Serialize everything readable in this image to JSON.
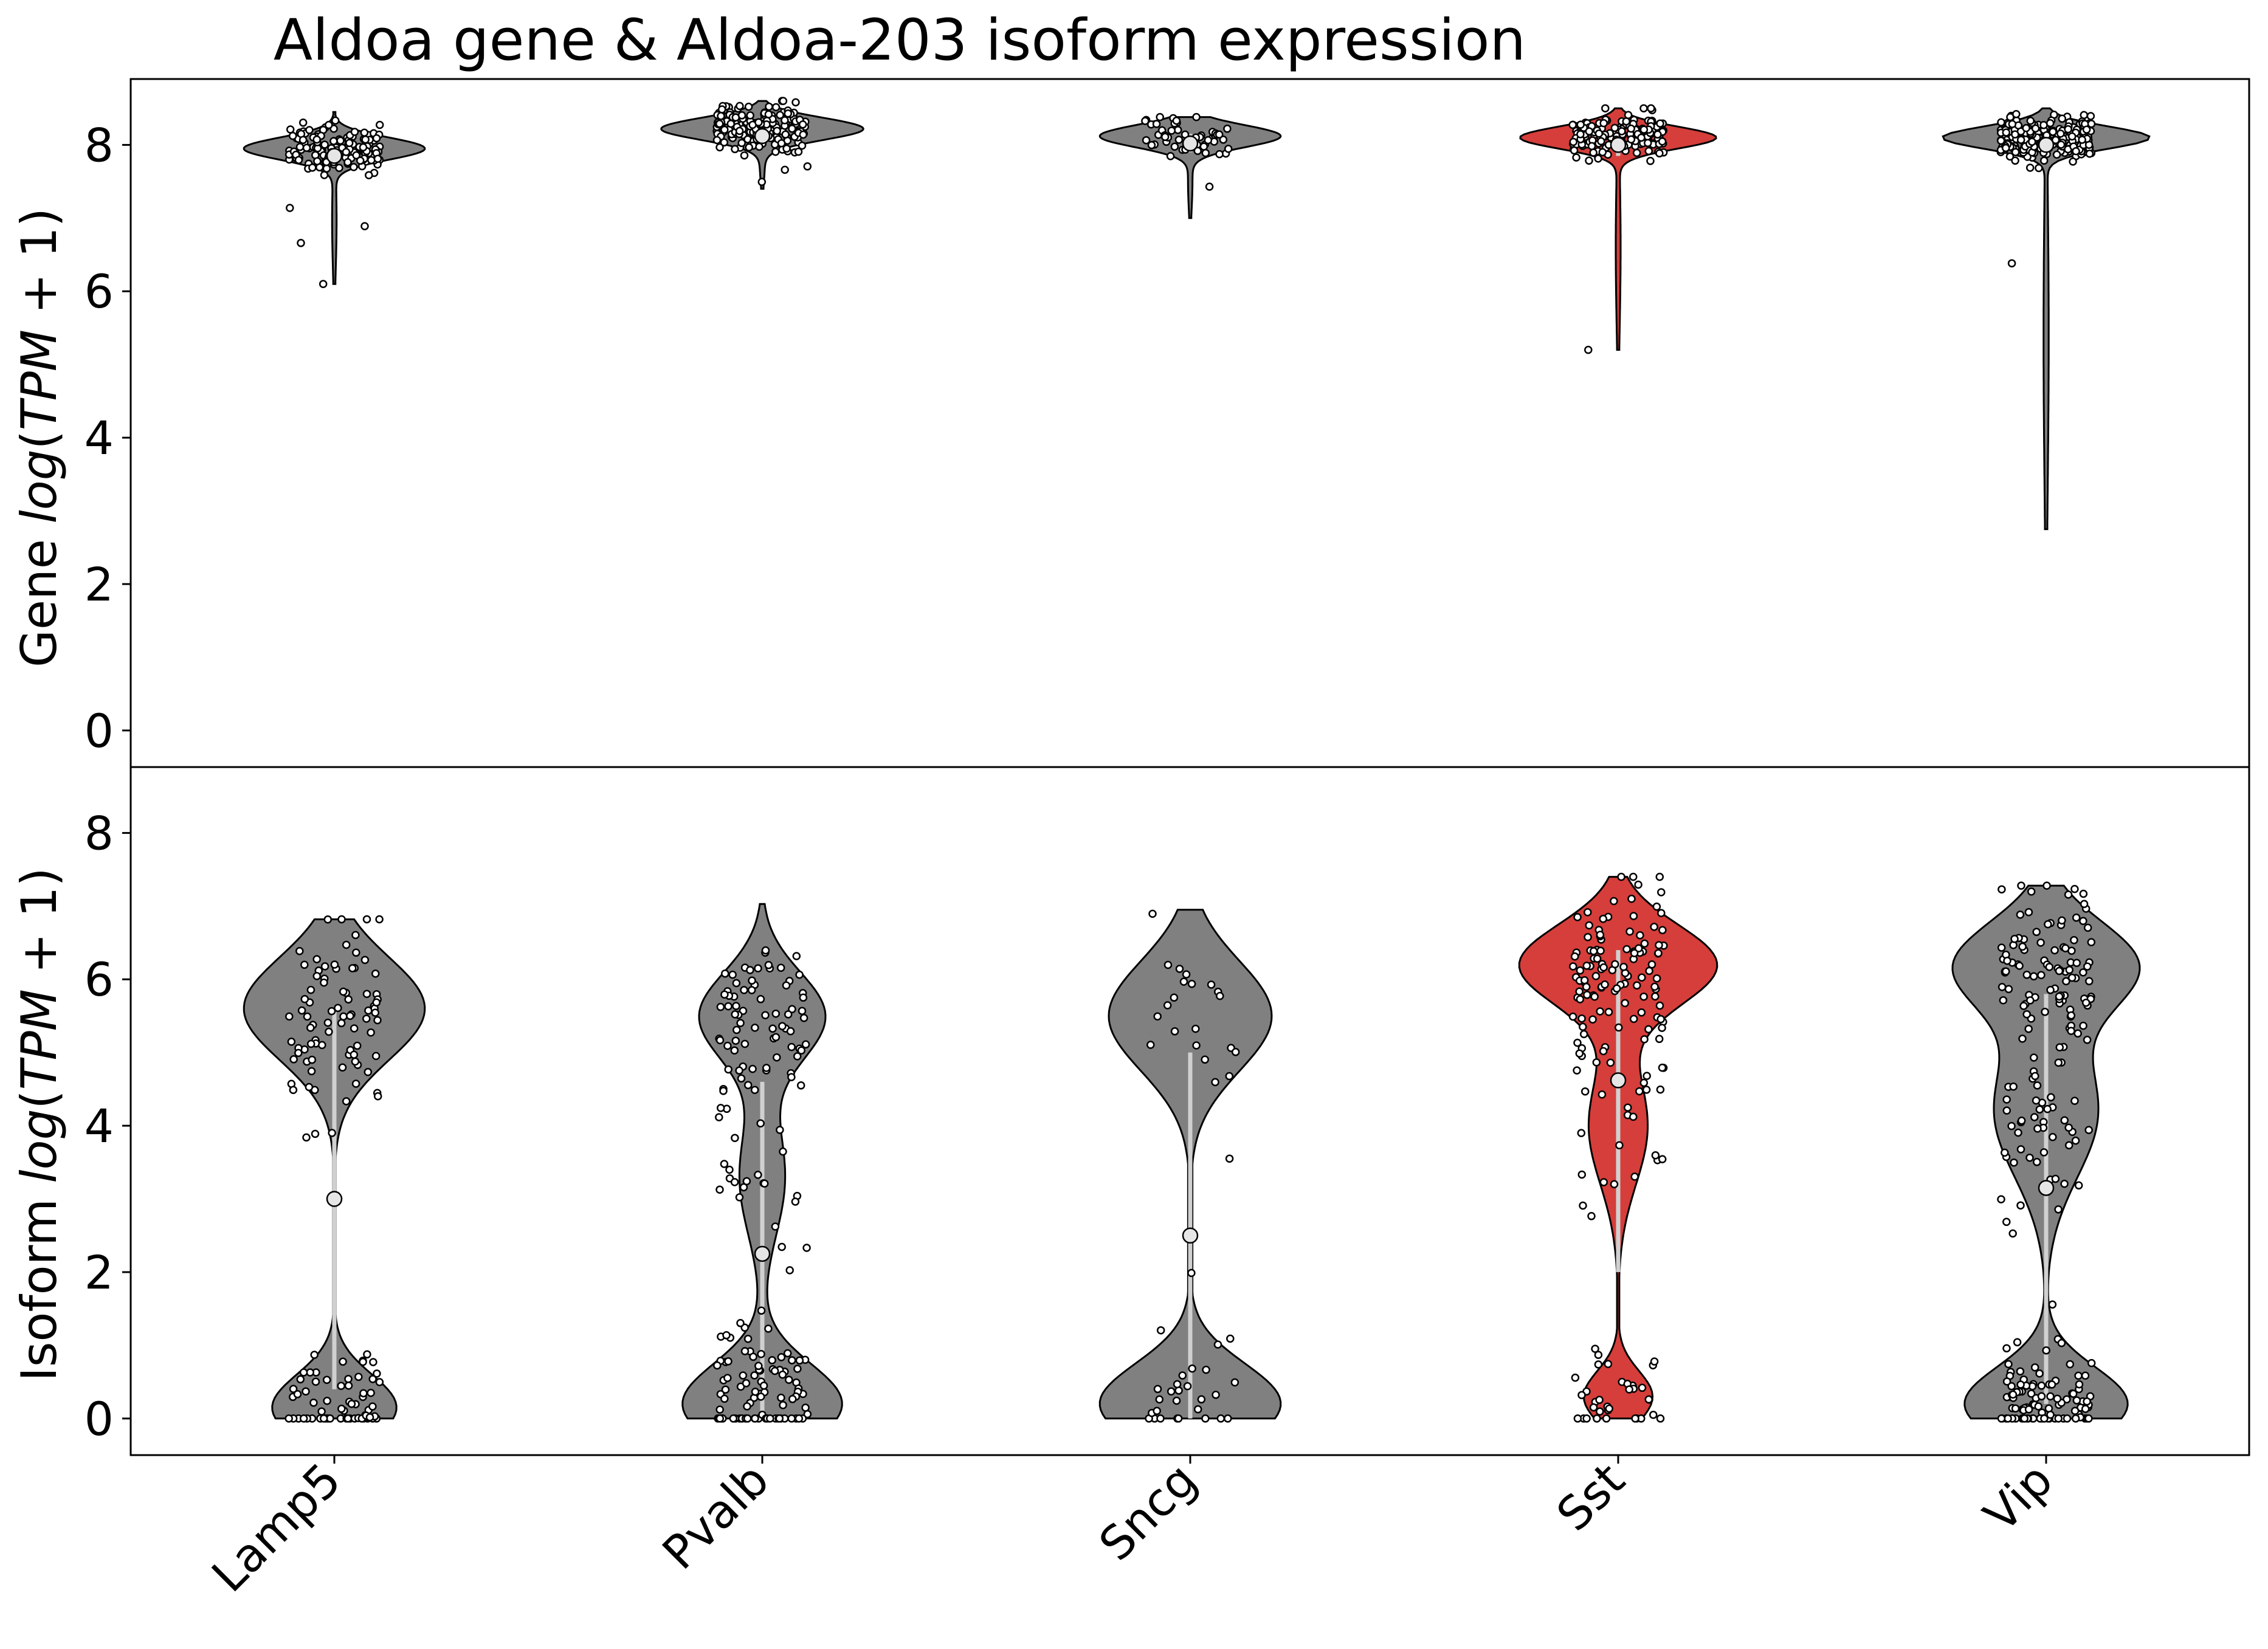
{
  "chart_data": [
    {
      "type": "violin",
      "panel": "gene",
      "title": "Aldoa gene & Aldoa-203 isoform expression",
      "ylabel": {
        "prefix": "Gene ",
        "italic": "log",
        "open": "(",
        "italic2": "TPM",
        "rest": " + 1)"
      },
      "ylim": [
        -0.5,
        8.9
      ],
      "yticks": [
        0,
        2,
        4,
        6,
        8
      ],
      "categories": [
        "Lamp5",
        "Pvalb",
        "Sncg",
        "Sst",
        "Vip"
      ],
      "highlight": "Sst",
      "colors": {
        "default": "#808080",
        "highlight": "#d53e3a"
      },
      "medians": [
        7.85,
        8.12,
        8.02,
        8.0,
        8.0
      ],
      "min": [
        6.1,
        7.4,
        7.0,
        5.2,
        2.75
      ],
      "max": [
        8.45,
        8.6,
        8.38,
        8.5,
        8.5
      ],
      "iqr": [
        [
          7.7,
          8.05
        ],
        [
          8.0,
          8.25
        ],
        [
          7.9,
          8.15
        ],
        [
          7.85,
          8.2
        ],
        [
          7.85,
          8.2
        ]
      ]
    },
    {
      "type": "violin",
      "panel": "isoform",
      "ylabel": {
        "prefix": "Isoform ",
        "italic": "log",
        "open": "(",
        "italic2": "TPM",
        "rest": " + 1)"
      },
      "ylim": [
        -0.5,
        8.9
      ],
      "yticks": [
        0,
        2,
        4,
        6,
        8
      ],
      "categories": [
        "Lamp5",
        "Pvalb",
        "Sncg",
        "Sst",
        "Vip"
      ],
      "highlight": "Sst",
      "colors": {
        "default": "#808080",
        "highlight": "#d53e3a"
      },
      "medians": [
        3.0,
        2.25,
        2.5,
        4.62,
        3.15
      ],
      "min": [
        0.0,
        0.0,
        0.0,
        0.0,
        0.0
      ],
      "max": [
        6.82,
        7.03,
        6.95,
        7.4,
        7.28
      ],
      "iqr": [
        [
          0.4,
          5.6
        ],
        [
          0.0,
          4.6
        ],
        [
          0.0,
          5.0
        ],
        [
          2.0,
          6.4
        ],
        [
          0.2,
          5.8
        ]
      ]
    }
  ]
}
